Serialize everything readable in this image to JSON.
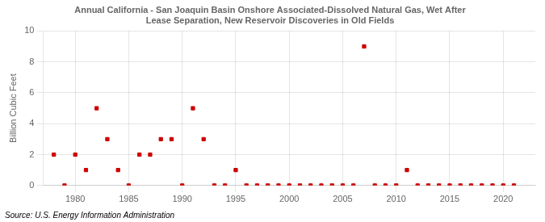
{
  "chart_data": {
    "type": "scatter",
    "title": "Annual California - San Joaquin Basin Onshore Associated-Dissolved Natural Gas, Wet After\nLease Separation, New Reservoir Discoveries in Old Fields",
    "ylabel": "Billion Cubic Feet",
    "annotations": [
      "Source: U.S. Energy Information Administration"
    ],
    "x": [
      1978,
      1979,
      1980,
      1981,
      1982,
      1983,
      1984,
      1985,
      1986,
      1987,
      1988,
      1989,
      1990,
      1991,
      1992,
      1993,
      1994,
      1995,
      1996,
      1997,
      1998,
      1999,
      2000,
      2001,
      2002,
      2003,
      2004,
      2005,
      2006,
      2007,
      2008,
      2009,
      2010,
      2011,
      2012,
      2013,
      2014,
      2015,
      2016,
      2017,
      2018,
      2019,
      2020,
      2021
    ],
    "values": [
      2,
      0,
      2,
      1,
      5,
      3,
      1,
      0,
      2,
      2,
      3,
      3,
      0,
      5,
      3,
      0,
      0,
      1,
      0,
      0,
      0,
      0,
      0,
      0,
      0,
      0,
      0,
      0,
      0,
      9,
      0,
      0,
      0,
      1,
      0,
      0,
      0,
      0,
      0,
      0,
      0,
      0,
      0,
      0
    ],
    "color": "#cc0000",
    "marker": "square",
    "xlim": [
      1977,
      2023
    ],
    "ylim": [
      0,
      10
    ],
    "xticks": [
      1980,
      1985,
      1990,
      1995,
      2000,
      2005,
      2010,
      2015,
      2020
    ],
    "yticks": [
      0,
      2,
      4,
      6,
      8,
      10
    ],
    "grid": true
  }
}
